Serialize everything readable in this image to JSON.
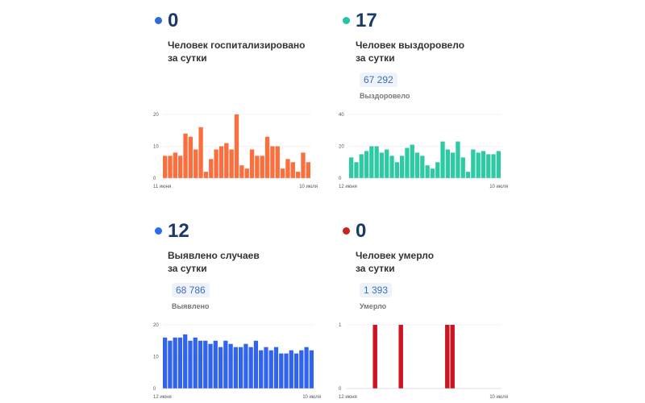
{
  "cards": [
    {
      "value": "0",
      "line1": "Человек госпитализировано",
      "line2": "за сутки",
      "total": "",
      "total_label": "",
      "dot_color": "#2f6bd8"
    },
    {
      "value": "17",
      "line1": "Человек выздоровело",
      "line2": "за сутки",
      "total": "67 292",
      "total_label": "Выздоровело",
      "dot_color": "#22c4a4"
    },
    {
      "value": "12",
      "line1": "Выявлено случаев",
      "line2": "за сутки",
      "total": "68 786",
      "total_label": "Выявлено",
      "dot_color": "#2f6bf0"
    },
    {
      "value": "0",
      "line1": "Человек умерло",
      "line2": "за сутки",
      "total": "1 393",
      "total_label": "Умерло",
      "dot_color": "#cc1f1f"
    }
  ],
  "chart_data": [
    {
      "type": "bar",
      "color": "#fb6e3d",
      "ylim": [
        0,
        20
      ],
      "yticks": [
        "0",
        "10",
        "20"
      ],
      "x_start": "11 июня",
      "x_end": "10 июля",
      "values": [
        7,
        7,
        8,
        7,
        14,
        13,
        9,
        16,
        2,
        6,
        9,
        10,
        11,
        9,
        20,
        4,
        3,
        9,
        7,
        7,
        13,
        10,
        10,
        3,
        6,
        5,
        2,
        8,
        5
      ]
    },
    {
      "type": "bar",
      "color": "#2ecaa4",
      "ylim": [
        0,
        40
      ],
      "yticks": [
        "0",
        "20",
        "40"
      ],
      "x_start": "12 июня",
      "x_end": "10 июля",
      "values": [
        13,
        10,
        15,
        17,
        20,
        20,
        16,
        18,
        14,
        10,
        14,
        19,
        21,
        16,
        14,
        8,
        6,
        10,
        23,
        18,
        16,
        23,
        13,
        4,
        18,
        16,
        17,
        15,
        15,
        17
      ]
    },
    {
      "type": "bar",
      "color": "#3064ec",
      "ylim": [
        0,
        20
      ],
      "yticks": [
        "0",
        "10",
        "20"
      ],
      "x_start": "12 июня",
      "x_end": "10 июля",
      "values": [
        16,
        15,
        16,
        16,
        17,
        15,
        16,
        15,
        15,
        14,
        15,
        13,
        15,
        14,
        13,
        13,
        14,
        13,
        15,
        12,
        13,
        12,
        13,
        11,
        11,
        12,
        11,
        12,
        13,
        12
      ]
    },
    {
      "type": "bar",
      "color": "#cc1520",
      "ylim": [
        0,
        1
      ],
      "yticks": [
        "0",
        "1"
      ],
      "x_start": "12 июня",
      "x_end": "10 июля",
      "values": [
        0,
        0,
        0,
        0,
        0,
        1,
        0,
        0,
        0,
        0,
        1,
        0,
        0,
        0,
        0,
        0,
        0,
        0,
        0,
        1,
        1,
        0,
        0,
        0,
        0,
        0,
        0,
        0,
        0,
        0
      ]
    }
  ]
}
